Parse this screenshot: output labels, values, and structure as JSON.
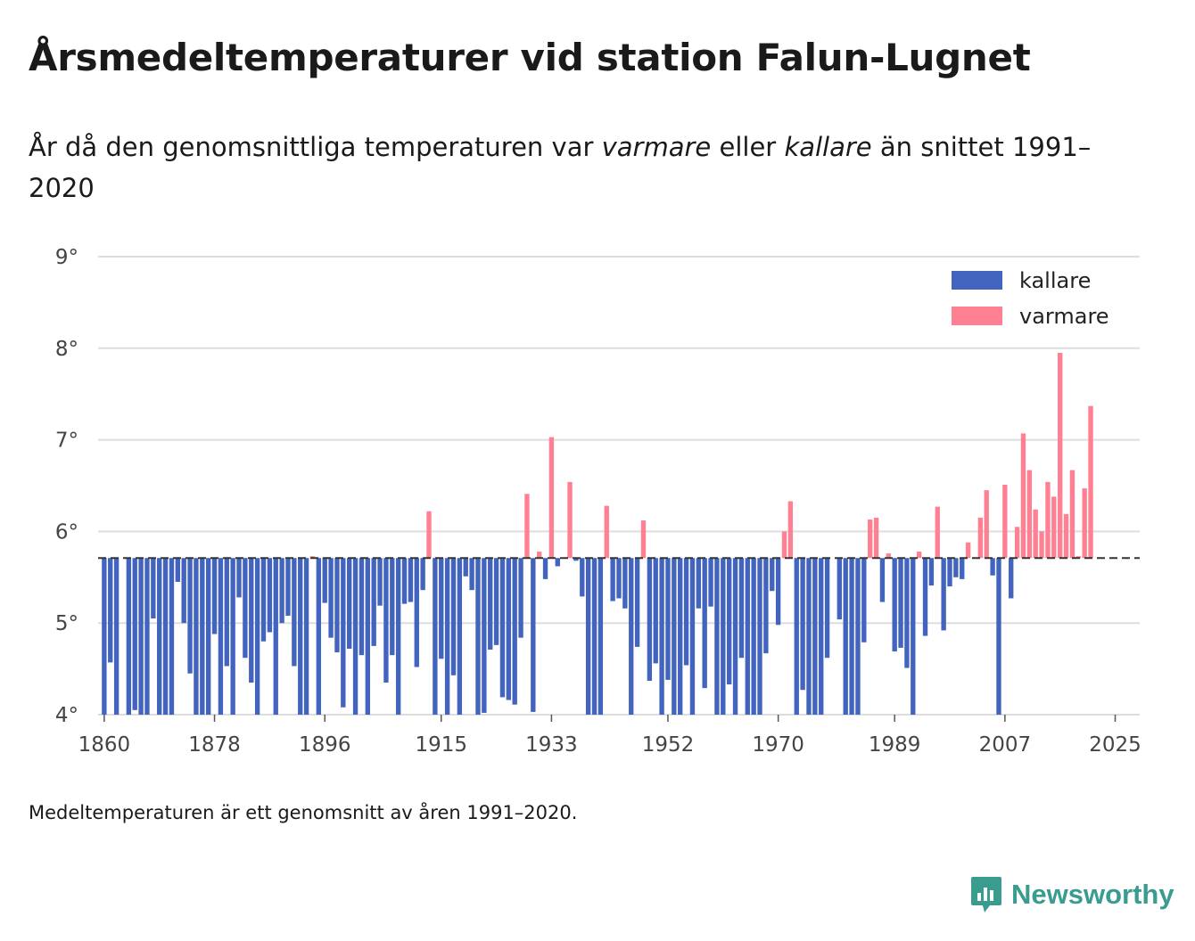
{
  "title": "Årsmedeltemperaturer vid station Falun-Lugnet",
  "subtitle": {
    "part1": "År då den genomsnittliga temperaturen var ",
    "warm_word": "varmare",
    "part2": " eller ",
    "cold_word": "kallare",
    "part3": " än snittet 1991–2020"
  },
  "footnote": "Medeltemperaturen är ett genomsnitt av åren 1991–2020.",
  "brand": "Newsworthy",
  "colors": {
    "kallare": "#4264bf",
    "varmare": "#ff8092",
    "grid": "#dddddd",
    "baseline": "#333333",
    "brand": "#3a9b8f"
  },
  "chart_data": {
    "type": "bar",
    "title": "Årsmedeltemperaturer vid station Falun-Lugnet",
    "xlabel": "",
    "ylabel": "",
    "baseline": 5.71,
    "baseline_label": "snittet 1991–2020",
    "ylim": [
      4,
      9
    ],
    "yticks": [
      4,
      5,
      6,
      7,
      8,
      9
    ],
    "ytick_labels": [
      "4°",
      "5°",
      "6°",
      "7°",
      "8°",
      "9°"
    ],
    "xlim": [
      1859,
      2029
    ],
    "xticks": [
      1860,
      1878,
      1896,
      1915,
      1933,
      1952,
      1970,
      1989,
      2007,
      2025
    ],
    "xtick_labels": [
      "1860",
      "1878",
      "1896",
      "1915",
      "1933",
      "1952",
      "1970",
      "1989",
      "2007",
      "2025"
    ],
    "legend": [
      {
        "key": "kallare",
        "label": "kallare"
      },
      {
        "key": "varmare",
        "label": "varmare"
      }
    ],
    "legend_position": "top-right",
    "start_year": 1860,
    "values": [
      3.6,
      4.57,
      3.7,
      null,
      3.5,
      4.05,
      3.8,
      3.6,
      5.05,
      3.7,
      3.8,
      3.6,
      5.45,
      5.0,
      4.45,
      3.5,
      3.7,
      3.6,
      4.88,
      3.75,
      4.53,
      3.8,
      5.28,
      4.62,
      4.35,
      3.7,
      4.8,
      4.9,
      3.7,
      5.0,
      5.08,
      4.53,
      3.5,
      3.9,
      5.73,
      3.85,
      5.22,
      4.84,
      4.68,
      4.08,
      4.72,
      3.7,
      4.65,
      4.0,
      4.75,
      5.19,
      4.35,
      4.65,
      3.95,
      5.21,
      5.23,
      4.52,
      5.36,
      6.22,
      3.9,
      4.61,
      3.8,
      4.43,
      3.75,
      5.51,
      5.36,
      4.0,
      4.02,
      4.71,
      4.76,
      4.19,
      4.16,
      4.11,
      4.84,
      6.41,
      4.03,
      5.78,
      5.48,
      7.03,
      5.62,
      null,
      6.54,
      5.68,
      5.29,
      3.7,
      3.8,
      3.7,
      6.28,
      5.24,
      5.27,
      5.16,
      3.8,
      4.74,
      6.12,
      4.37,
      4.56,
      3.9,
      4.38,
      3.9,
      3.8,
      4.54,
      3.8,
      5.16,
      4.29,
      5.18,
      3.9,
      3.8,
      4.33,
      3.75,
      4.62,
      3.8,
      3.7,
      3.9,
      4.67,
      5.35,
      4.98,
      6.0,
      6.33,
      3.9,
      4.27,
      3.8,
      3.7,
      3.95,
      4.62,
      null,
      5.04,
      3.9,
      3.8,
      3.9,
      4.79,
      6.13,
      6.15,
      5.23,
      5.76,
      4.69,
      4.73,
      4.51,
      3.9,
      5.78,
      4.86,
      5.41,
      6.27,
      4.92,
      5.4,
      5.5,
      5.48,
      5.88,
      null,
      6.15,
      6.45,
      5.52,
      3.9,
      6.51,
      5.27,
      6.05,
      7.07,
      6.67,
      6.24,
      6.0,
      6.54,
      6.38,
      7.95,
      6.19,
      6.67,
      5.73,
      6.47,
      7.37
    ]
  }
}
